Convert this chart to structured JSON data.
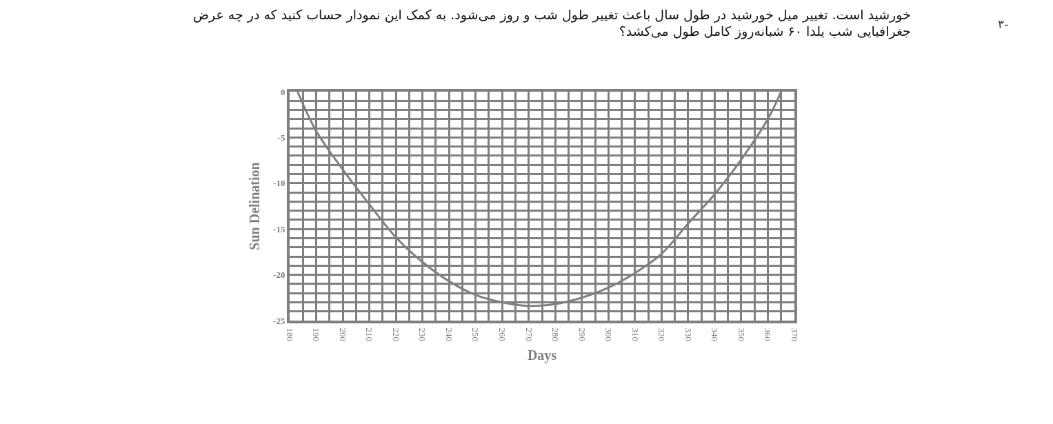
{
  "chart_data": {
    "type": "line",
    "title": "خورشید است. تغییر میل خورشید در طول سال باعث تغییر طول شب و روز می‌شود. به کمک این نمودار حساب کنید که در چه عرض\nجغرافیایی شب یلدا ۶۰ شبانه‌روز کامل طول می‌کشد؟",
    "annotations": [
      "۳-"
    ],
    "xlabel": "Days",
    "ylabel": "Sun Delination",
    "x": [
      183,
      190,
      200,
      210,
      220,
      230,
      240,
      250,
      260,
      270,
      280,
      290,
      300,
      310,
      320,
      330,
      340,
      350,
      360,
      365
    ],
    "series": [
      {
        "color": "#808080",
        "values": [
          0,
          -4.3,
          -8.5,
          -12.3,
          -15.9,
          -18.6,
          -20.7,
          -22.2,
          -23,
          -23.4,
          -23.2,
          -22.5,
          -21.4,
          -19.8,
          -17.7,
          -14.4,
          -11.2,
          -7.4,
          -3,
          0
        ]
      }
    ],
    "xlim": [
      180,
      370
    ],
    "xticks": [
      180,
      190,
      200,
      210,
      220,
      230,
      240,
      250,
      260,
      270,
      280,
      290,
      300,
      310,
      320,
      330,
      340,
      350,
      360,
      370
    ],
    "ylim": [
      -25,
      0
    ],
    "yticks": [
      0,
      -5,
      -10,
      -15,
      -20,
      -25
    ],
    "grid": true,
    "marker": "none",
    "line_style": "solid"
  }
}
